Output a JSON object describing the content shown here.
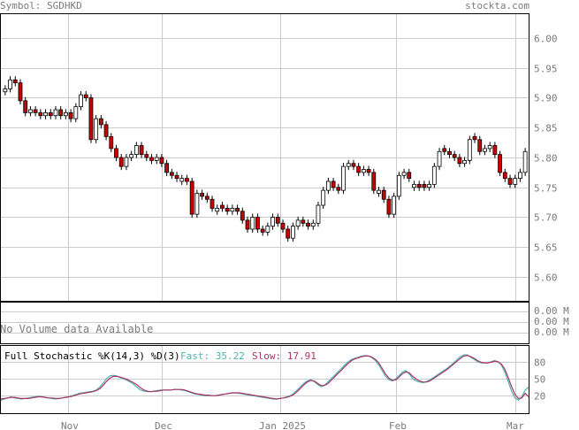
{
  "header": {
    "symbol": "Symbol: SGDHKD",
    "brand": "stockta.com"
  },
  "volume": {
    "message": "No Volume data Available",
    "ticks": [
      "0.00 M",
      "0.00 M",
      "0.00 M"
    ]
  },
  "stochastic": {
    "title": "Full Stochastic %K(14,3) %D(3)",
    "fast_label": "Fast: 35.22",
    "slow_label": "Slow: 17.91"
  },
  "colors": {
    "up_fill": "#ffffff",
    "down_fill": "#cc0000",
    "fast_line": "#4fb3b3",
    "slow_line": "#aa3366",
    "grid": "#cccccc",
    "text": "#7b7b7b"
  },
  "chart_data": [
    {
      "type": "candlestick",
      "ylim": [
        5.56,
        6.04
      ],
      "y_ticks": [
        "6.00",
        "5.95",
        "5.90",
        "5.85",
        "5.80",
        "5.75",
        "5.70",
        "5.65",
        "5.60"
      ],
      "x_ticks": [
        "Nov",
        "Dec",
        "Jan 2025",
        "Feb",
        "Mar"
      ],
      "grid": true,
      "series": [
        {
          "c": 5.915,
          "u": 1
        },
        {
          "c": 5.93,
          "u": 1
        },
        {
          "c": 5.925,
          "u": 0
        },
        {
          "c": 5.895,
          "u": 0
        },
        {
          "c": 5.875,
          "u": 0
        },
        {
          "c": 5.88,
          "u": 1
        },
        {
          "c": 5.875,
          "u": 0
        },
        {
          "c": 5.87,
          "u": 0
        },
        {
          "c": 5.875,
          "u": 1
        },
        {
          "c": 5.87,
          "u": 0
        },
        {
          "c": 5.88,
          "u": 1
        },
        {
          "c": 5.87,
          "u": 0
        },
        {
          "c": 5.875,
          "u": 1
        },
        {
          "c": 5.865,
          "u": 0
        },
        {
          "c": 5.885,
          "u": 1
        },
        {
          "c": 5.905,
          "u": 1
        },
        {
          "c": 5.9,
          "u": 0
        },
        {
          "c": 5.83,
          "u": 0
        },
        {
          "c": 5.865,
          "u": 1
        },
        {
          "c": 5.855,
          "u": 0
        },
        {
          "c": 5.835,
          "u": 0
        },
        {
          "c": 5.815,
          "u": 0
        },
        {
          "c": 5.8,
          "u": 0
        },
        {
          "c": 5.785,
          "u": 0
        },
        {
          "c": 5.8,
          "u": 1
        },
        {
          "c": 5.805,
          "u": 1
        },
        {
          "c": 5.82,
          "u": 1
        },
        {
          "c": 5.805,
          "u": 0
        },
        {
          "c": 5.8,
          "u": 0
        },
        {
          "c": 5.795,
          "u": 0
        },
        {
          "c": 5.8,
          "u": 1
        },
        {
          "c": 5.79,
          "u": 0
        },
        {
          "c": 5.775,
          "u": 0
        },
        {
          "c": 5.77,
          "u": 0
        },
        {
          "c": 5.765,
          "u": 0
        },
        {
          "c": 5.765,
          "u": 1
        },
        {
          "c": 5.76,
          "u": 0
        },
        {
          "c": 5.705,
          "u": 0
        },
        {
          "c": 5.74,
          "u": 1
        },
        {
          "c": 5.735,
          "u": 0
        },
        {
          "c": 5.73,
          "u": 0
        },
        {
          "c": 5.715,
          "u": 0
        },
        {
          "c": 5.715,
          "u": 1
        },
        {
          "c": 5.715,
          "u": 0
        },
        {
          "c": 5.71,
          "u": 0
        },
        {
          "c": 5.715,
          "u": 1
        },
        {
          "c": 5.71,
          "u": 0
        },
        {
          "c": 5.695,
          "u": 0
        },
        {
          "c": 5.68,
          "u": 0
        },
        {
          "c": 5.7,
          "u": 1
        },
        {
          "c": 5.68,
          "u": 0
        },
        {
          "c": 5.675,
          "u": 0
        },
        {
          "c": 5.685,
          "u": 1
        },
        {
          "c": 5.7,
          "u": 1
        },
        {
          "c": 5.69,
          "u": 0
        },
        {
          "c": 5.68,
          "u": 0
        },
        {
          "c": 5.665,
          "u": 0
        },
        {
          "c": 5.685,
          "u": 1
        },
        {
          "c": 5.695,
          "u": 1
        },
        {
          "c": 5.69,
          "u": 0
        },
        {
          "c": 5.685,
          "u": 0
        },
        {
          "c": 5.69,
          "u": 1
        },
        {
          "c": 5.72,
          "u": 1
        },
        {
          "c": 5.745,
          "u": 1
        },
        {
          "c": 5.76,
          "u": 1
        },
        {
          "c": 5.75,
          "u": 0
        },
        {
          "c": 5.745,
          "u": 0
        },
        {
          "c": 5.785,
          "u": 1
        },
        {
          "c": 5.79,
          "u": 1
        },
        {
          "c": 5.785,
          "u": 0
        },
        {
          "c": 5.775,
          "u": 0
        },
        {
          "c": 5.78,
          "u": 1
        },
        {
          "c": 5.775,
          "u": 0
        },
        {
          "c": 5.745,
          "u": 0
        },
        {
          "c": 5.745,
          "u": 1
        },
        {
          "c": 5.73,
          "u": 0
        },
        {
          "c": 5.705,
          "u": 0
        },
        {
          "c": 5.735,
          "u": 1
        },
        {
          "c": 5.77,
          "u": 1
        },
        {
          "c": 5.775,
          "u": 1
        },
        {
          "c": 5.765,
          "u": 0
        },
        {
          "c": 5.755,
          "u": 1
        },
        {
          "c": 5.75,
          "u": 0
        },
        {
          "c": 5.75,
          "u": 0
        },
        {
          "c": 5.755,
          "u": 1
        },
        {
          "c": 5.785,
          "u": 1
        },
        {
          "c": 5.81,
          "u": 1
        },
        {
          "c": 5.81,
          "u": 0
        },
        {
          "c": 5.805,
          "u": 0
        },
        {
          "c": 5.8,
          "u": 0
        },
        {
          "c": 5.79,
          "u": 0
        },
        {
          "c": 5.795,
          "u": 1
        },
        {
          "c": 5.83,
          "u": 1
        },
        {
          "c": 5.83,
          "u": 0
        },
        {
          "c": 5.81,
          "u": 0
        },
        {
          "c": 5.815,
          "u": 1
        },
        {
          "c": 5.82,
          "u": 1
        },
        {
          "c": 5.805,
          "u": 0
        },
        {
          "c": 5.775,
          "u": 0
        },
        {
          "c": 5.765,
          "u": 0
        },
        {
          "c": 5.755,
          "u": 0
        },
        {
          "c": 5.765,
          "u": 1
        },
        {
          "c": 5.775,
          "u": 1
        },
        {
          "c": 5.81,
          "u": 1
        }
      ]
    },
    {
      "type": "line",
      "ylim": [
        0,
        100
      ],
      "y_ticks": [
        "80",
        "50",
        "20"
      ],
      "series": [
        {
          "name": "Fast",
          "values": [
            12,
            14,
            16,
            18,
            16,
            15,
            14,
            15,
            16,
            17,
            18,
            19,
            18,
            17,
            16,
            15,
            14,
            15,
            16,
            17,
            18,
            20,
            22,
            24,
            25,
            26,
            27,
            28,
            30,
            35,
            42,
            50,
            55,
            56,
            55,
            52,
            50,
            47,
            44,
            40,
            35,
            30,
            28,
            27,
            27,
            28,
            29,
            30,
            30,
            30,
            30,
            31,
            31,
            30,
            29,
            27,
            25,
            23,
            22,
            21,
            20,
            20,
            20,
            20,
            21,
            22,
            23,
            24,
            25,
            25,
            24,
            23,
            22,
            21,
            20,
            19,
            18,
            17,
            16,
            15,
            14,
            14,
            15,
            16,
            18,
            20,
            24,
            30,
            36,
            42,
            46,
            48,
            45,
            40,
            36,
            38,
            44,
            50,
            56,
            62,
            68,
            74,
            80,
            84,
            86,
            88,
            90,
            91,
            90,
            87,
            82,
            74,
            64,
            54,
            48,
            46,
            50,
            56,
            62,
            64,
            58,
            50,
            46,
            44,
            43,
            45,
            48,
            52,
            56,
            60,
            64,
            68,
            73,
            78,
            84,
            89,
            92,
            92,
            88,
            84,
            80,
            78,
            78,
            78,
            80,
            82,
            80,
            74,
            62,
            45,
            28,
            16,
            12,
            18,
            30,
            35
          ]
        },
        {
          "name": "Slow",
          "values": [
            14,
            15,
            16,
            17,
            17,
            16,
            15,
            15,
            15,
            16,
            17,
            18,
            18,
            17,
            16,
            16,
            15,
            15,
            16,
            17,
            18,
            19,
            21,
            23,
            24,
            25,
            26,
            27,
            29,
            32,
            38,
            45,
            51,
            54,
            54,
            53,
            51,
            49,
            46,
            43,
            39,
            34,
            30,
            28,
            27,
            28,
            28,
            29,
            30,
            30,
            30,
            31,
            31,
            31,
            30,
            28,
            26,
            24,
            23,
            22,
            21,
            21,
            20,
            20,
            21,
            22,
            23,
            24,
            25,
            25,
            25,
            24,
            23,
            22,
            21,
            20,
            19,
            18,
            17,
            16,
            15,
            14,
            15,
            16,
            17,
            19,
            22,
            27,
            33,
            39,
            44,
            47,
            46,
            42,
            38,
            38,
            41,
            47,
            53,
            59,
            65,
            71,
            77,
            82,
            85,
            87,
            89,
            90,
            90,
            88,
            84,
            78,
            68,
            58,
            51,
            47,
            48,
            53,
            59,
            62,
            60,
            54,
            49,
            46,
            44,
            44,
            46,
            50,
            54,
            58,
            62,
            66,
            71,
            76,
            81,
            86,
            90,
            91,
            89,
            86,
            82,
            79,
            78,
            78,
            79,
            81,
            80,
            76,
            67,
            52,
            36,
            22,
            15,
            16,
            24,
            18
          ]
        }
      ]
    }
  ]
}
